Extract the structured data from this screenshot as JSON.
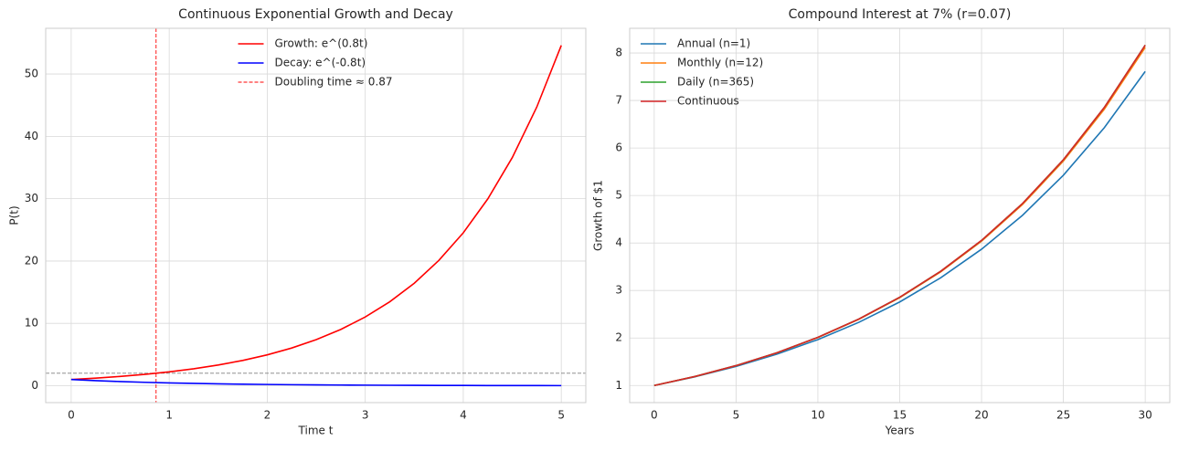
{
  "chart_data": [
    {
      "type": "line",
      "title": "Continuous Exponential Growth and Decay",
      "xlabel": "Time t",
      "ylabel": "P(t)",
      "x": [
        0,
        0.25,
        0.5,
        0.75,
        1,
        1.25,
        1.5,
        1.75,
        2,
        2.25,
        2.5,
        2.75,
        3,
        3.25,
        3.5,
        3.75,
        4,
        4.25,
        4.5,
        4.75,
        5
      ],
      "series": [
        {
          "name": "Growth: e^(0.8t)",
          "color": "#ff0000",
          "values": [
            1,
            1.2214,
            1.4918,
            1.8221,
            2.2255,
            2.7183,
            3.3201,
            4.0552,
            4.953,
            6.0496,
            7.3891,
            9.025,
            11.0232,
            13.4637,
            16.4446,
            20.0855,
            24.5325,
            29.9641,
            36.5982,
            44.7012,
            54.5982
          ]
        },
        {
          "name": "Decay:  e^(-0.8t)",
          "color": "#0000ff",
          "values": [
            1,
            0.8187,
            0.6703,
            0.5488,
            0.4493,
            0.3679,
            0.3012,
            0.2466,
            0.2019,
            0.1653,
            0.1353,
            0.1108,
            0.0907,
            0.0743,
            0.0608,
            0.0498,
            0.0408,
            0.0334,
            0.0273,
            0.0224,
            0.0183
          ]
        }
      ],
      "vlines": [
        {
          "x": 0.866,
          "name": "Doubling time ≈ 0.87",
          "color": "#ff0000"
        }
      ],
      "hlines": [
        {
          "y": 2,
          "color": "#808080"
        }
      ],
      "xlim": [
        -0.26,
        5.25
      ],
      "ylim": [
        -2.71,
        57.33
      ],
      "xticks": [
        0,
        1,
        2,
        3,
        4,
        5
      ],
      "yticks": [
        0,
        10,
        20,
        30,
        40,
        50
      ],
      "grid": true,
      "legend": "upper center"
    },
    {
      "type": "line",
      "title": "Compound Interest at 7% (r=0.07)",
      "xlabel": "Years",
      "ylabel": "Growth of $1",
      "x": [
        0,
        2.5,
        5,
        7.5,
        10,
        12.5,
        15,
        17.5,
        20,
        22.5,
        25,
        27.5,
        30
      ],
      "series": [
        {
          "name": "Annual (n=1)",
          "color": "#1f77b4",
          "values": [
            1,
            1.1843,
            1.4026,
            1.6611,
            1.9672,
            2.3297,
            2.759,
            3.2675,
            3.8697,
            4.5829,
            5.4274,
            6.4277,
            7.6123
          ]
        },
        {
          "name": "Monthly (n=12)",
          "color": "#ff7f0e",
          "values": [
            1,
            1.1906,
            1.4176,
            1.6878,
            2.0097,
            2.3928,
            2.8489,
            3.392,
            4.0387,
            4.8086,
            5.7254,
            6.8168,
            8.1165
          ]
        },
        {
          "name": "Daily (n=365)",
          "color": "#2ca02c",
          "values": [
            1,
            1.1912,
            1.4191,
            1.6904,
            2.0137,
            2.3988,
            2.8574,
            3.4038,
            4.0546,
            4.83,
            5.7536,
            6.8538,
            8.1646
          ]
        },
        {
          "name": "Continuous",
          "color": "#d62728",
          "values": [
            1,
            1.1912,
            1.4191,
            1.6905,
            2.0138,
            2.3989,
            2.8577,
            3.4042,
            4.0552,
            4.8307,
            5.7546,
            6.8551,
            8.1662
          ]
        }
      ],
      "xlim": [
        -1.5,
        31.5
      ],
      "ylim": [
        0.64,
        8.52
      ],
      "xticks": [
        0,
        5,
        10,
        15,
        20,
        25,
        30
      ],
      "yticks": [
        1,
        2,
        3,
        4,
        5,
        6,
        7,
        8
      ],
      "grid": true,
      "legend": "upper left"
    }
  ]
}
